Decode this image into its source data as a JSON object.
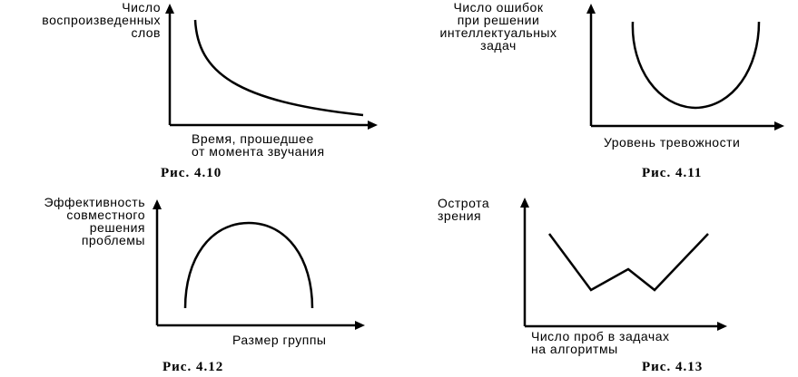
{
  "figures": [
    {
      "caption": "Рис. 4.10",
      "ylabel": "Число\nвоспроизведенных\nслов",
      "xlabel": "Время, прошедшее\nот момента звучания"
    },
    {
      "caption": "Рис. 4.11",
      "ylabel": "Число ошибок\nпри решении\nинтеллектуальных\nзадач",
      "xlabel": "Уровень тревожности"
    },
    {
      "caption": "Рис. 4.12",
      "ylabel": "Эффективность\nсовместного\nрешения\nпроблемы",
      "xlabel": "Размер группы"
    },
    {
      "caption": "Рис. 4.13",
      "ylabel": "Острота\nзрения",
      "xlabel": "Число проб в задачах\nна алгоритмы"
    }
  ]
}
